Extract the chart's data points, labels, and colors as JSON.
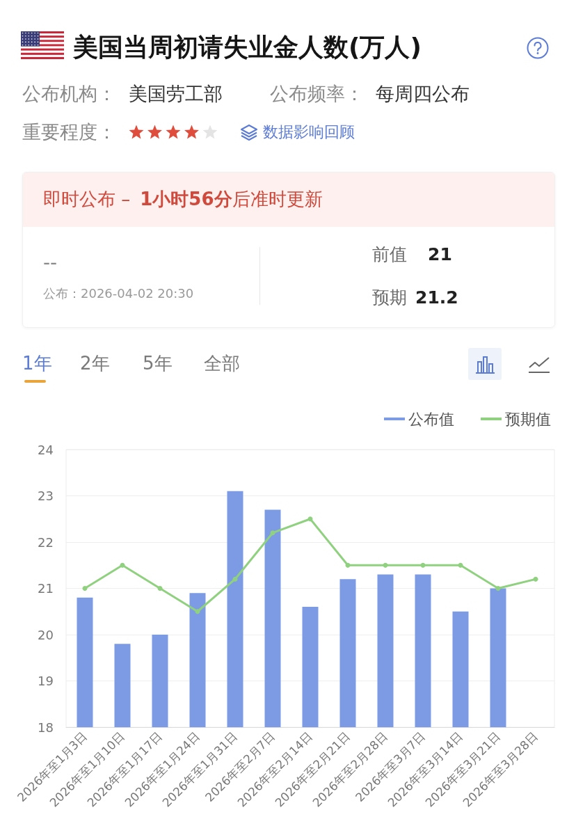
{
  "chart_data": [
    {
      "type": "other",
      "title": "美国当周初请失业金人数(万人)",
      "annotations": [
        "公布机构：",
        "美国劳工部",
        "公布频率：",
        "每周四公布",
        "重要程度：",
        "数据影响回顾",
        "即时公布 –",
        "1小时56分",
        "后准时更新",
        "--",
        "公布：2026-04-02 20:30",
        "前值",
        "21",
        "预期",
        "21.2"
      ]
    },
    {
      "type": "bar",
      "annotations": [
        "1年",
        "2年",
        "5年",
        "全部"
      ],
      "categories": [
        "2026年至1月3日",
        "2026年至1月10日",
        "2026年至1月17日",
        "2026年至1月24日",
        "2026年至1月31日",
        "2026年至2月7日",
        "2026年至2月14日",
        "2026年至2月21日",
        "2026年至2月28日",
        "2026年至3月7日",
        "2026年至3月14日",
        "2026年至3月21日",
        "2026年至3月28日"
      ],
      "series": [
        {
          "name": "公布值",
          "color": "#7d9be5",
          "values": [
            20.8,
            19.8,
            20.0,
            20.9,
            23.1,
            22.7,
            20.6,
            21.2,
            21.3,
            21.3,
            20.5,
            21.0,
            null
          ]
        },
        {
          "name": "预期值",
          "type": "line",
          "color": "#8fd17f",
          "values": [
            21.0,
            21.5,
            21.0,
            20.5,
            21.2,
            22.2,
            22.5,
            21.5,
            21.5,
            21.5,
            21.5,
            21.0,
            21.2
          ]
        }
      ],
      "ylim": [
        18,
        24
      ],
      "yticks": [
        18,
        19,
        20,
        21,
        22,
        23,
        24
      ],
      "grid": "y",
      "legend": "top right",
      "marker": "circle"
    }
  ]
}
